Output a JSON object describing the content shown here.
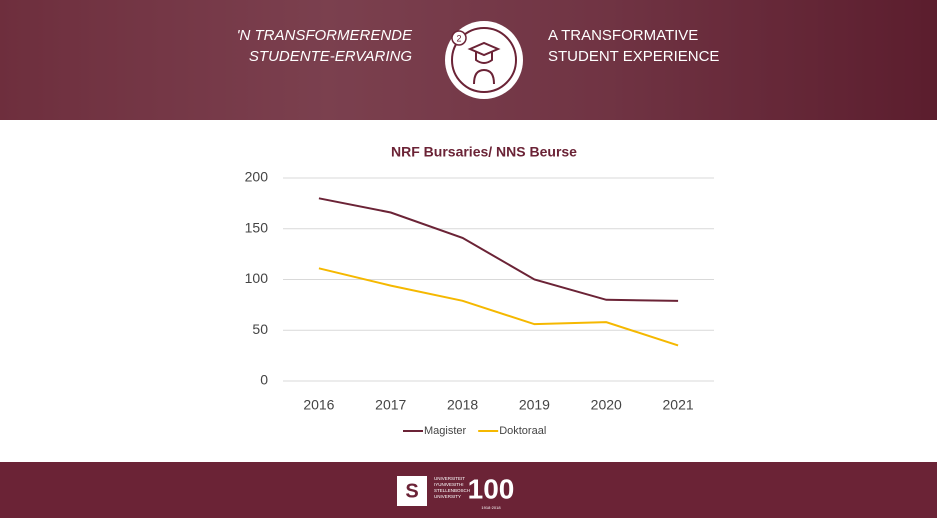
{
  "header": {
    "left_title": [
      "'N TRANSFORMERENDE",
      "STUDENTE-ERVARING"
    ],
    "icon_number": "2",
    "right_title": [
      "A TRANSFORMATIVE",
      "STUDENT EXPERIENCE"
    ]
  },
  "footer": {
    "logo_lines": [
      "UNIVERSITEIT",
      "IYUNIVESITHI",
      "STELLENBOSCH",
      "UNIVERSITY"
    ],
    "centenary": "100",
    "years": "1918·2018"
  },
  "chart_data": {
    "type": "line",
    "title": "NRF Bursaries/ NNS Beurse",
    "categories": [
      "2016",
      "2017",
      "2018",
      "2019",
      "2020",
      "2021"
    ],
    "series": [
      {
        "name": "Magister",
        "color": "#6b2336",
        "values": [
          180,
          166,
          141,
          100,
          80,
          79
        ]
      },
      {
        "name": "Doktoraal",
        "color": "#f5b800",
        "values": [
          111,
          94,
          79,
          56,
          58,
          35
        ]
      }
    ],
    "ylim": [
      0,
      200
    ],
    "yticks": [
      0,
      50,
      100,
      150,
      200
    ],
    "grid": true,
    "legend": "bottom"
  }
}
